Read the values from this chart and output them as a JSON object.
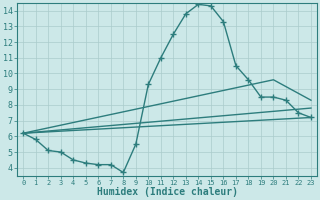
{
  "xlabel": "Humidex (Indice chaleur)",
  "bg_color": "#cce8e8",
  "line_color": "#2d7d7d",
  "grid_color": "#aacccc",
  "xlim": [
    -0.5,
    23.5
  ],
  "ylim": [
    3.5,
    14.5
  ],
  "xticks": [
    0,
    1,
    2,
    3,
    4,
    5,
    6,
    7,
    8,
    9,
    10,
    11,
    12,
    13,
    14,
    15,
    16,
    17,
    18,
    19,
    20,
    21,
    22,
    23
  ],
  "yticks": [
    4,
    5,
    6,
    7,
    8,
    9,
    10,
    11,
    12,
    13,
    14
  ],
  "curve_x": [
    0,
    1,
    2,
    3,
    4,
    5,
    6,
    7,
    8,
    9,
    10,
    11,
    12,
    13,
    14,
    15,
    16,
    17,
    18,
    19,
    20,
    21,
    22,
    23
  ],
  "curve_y": [
    6.2,
    5.8,
    5.1,
    5.0,
    4.5,
    4.3,
    4.2,
    4.2,
    3.7,
    5.5,
    9.3,
    11.0,
    12.5,
    13.8,
    14.4,
    14.3,
    13.3,
    10.5,
    9.6,
    8.5,
    8.5,
    8.3,
    7.5,
    7.2
  ],
  "line1_x": [
    0,
    23
  ],
  "line1_y": [
    6.2,
    7.2
  ],
  "line2_x": [
    0,
    23
  ],
  "line2_y": [
    6.2,
    7.8
  ],
  "line3_x": [
    0,
    20,
    23
  ],
  "line3_y": [
    6.2,
    9.6,
    8.3
  ]
}
